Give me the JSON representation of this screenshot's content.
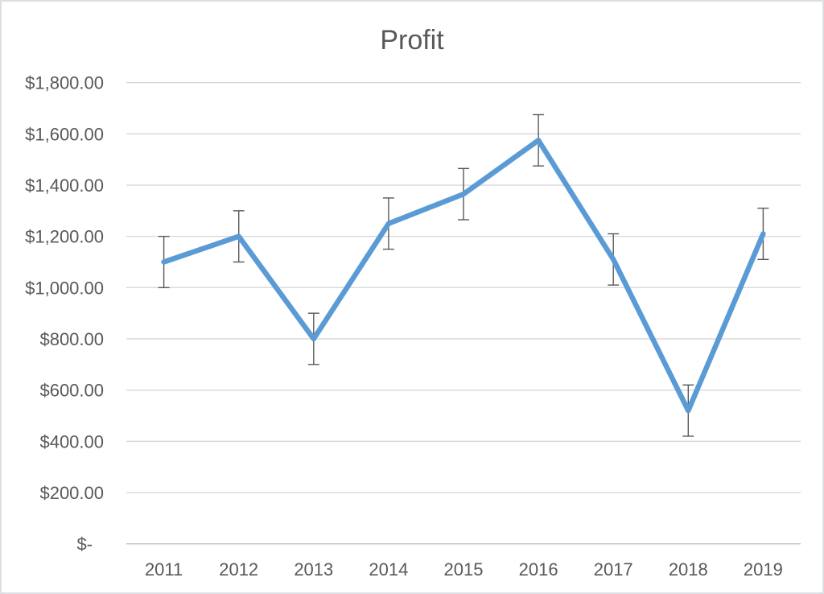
{
  "chart_data": {
    "type": "line",
    "title": "Profit",
    "categories": [
      "2011",
      "2012",
      "2013",
      "2014",
      "2015",
      "2016",
      "2017",
      "2018",
      "2019"
    ],
    "series": [
      {
        "name": "Profit",
        "values": [
          1100,
          1200,
          800,
          1250,
          1365,
          1575,
          1110,
          520,
          1210
        ]
      }
    ],
    "error_bars": {
      "mode": "fixed",
      "plus": 100,
      "minus": 100
    },
    "y_axis": {
      "min": 0,
      "max": 1800,
      "step": 200,
      "tick_labels": [
        "$-",
        "$200.00",
        "$400.00",
        "$600.00",
        "$800.00",
        "$1,000.00",
        "$1,200.00",
        "$1,400.00",
        "$1,600.00",
        "$1,800.00"
      ],
      "number_format": "accounting USD"
    },
    "grid": true,
    "legend": "none"
  },
  "colors": {
    "series_line": "#5B9BD5",
    "error_bar": "#595959",
    "text": "#595959",
    "gridline": "#D9D9D9",
    "axis_line": "#BFBFBF",
    "background": "#FFFFFF",
    "frame_border": "#DCDFE3"
  }
}
